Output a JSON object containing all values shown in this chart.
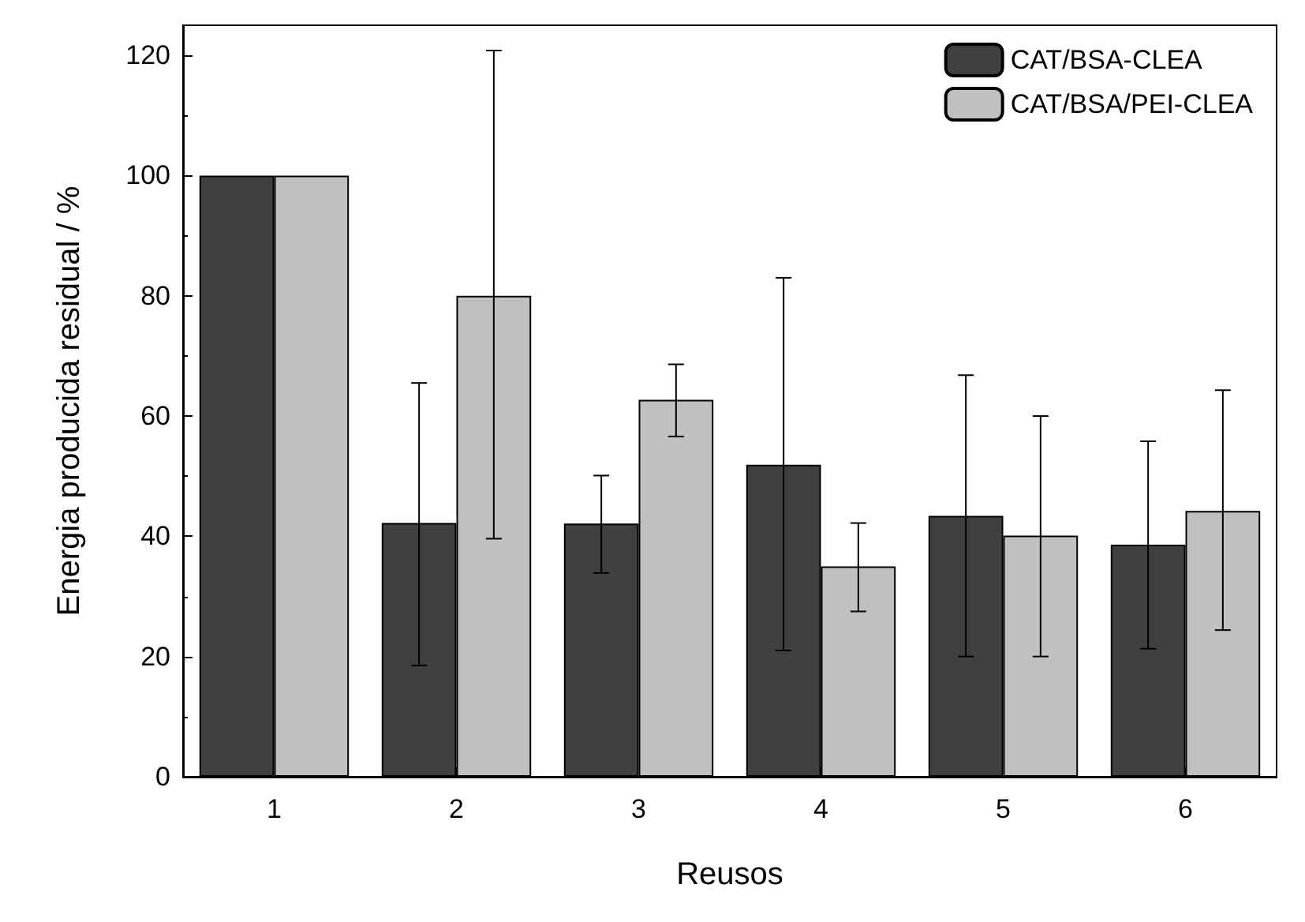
{
  "chart_data": {
    "type": "bar",
    "xlabel": "Reusos",
    "ylabel": "Energia producida residual / %",
    "categories": [
      "1",
      "2",
      "3",
      "4",
      "5",
      "6"
    ],
    "series": [
      {
        "name": "CAT/BSA-CLEA",
        "color": "#404040",
        "values": [
          100,
          42.2,
          42.1,
          51.9,
          43.4,
          38.6
        ],
        "errors": [
          null,
          [
            18.5,
            65.5
          ],
          [
            33.9,
            50.1
          ],
          [
            21,
            83
          ],
          [
            20,
            66.8
          ],
          [
            21.3,
            55.8
          ]
        ]
      },
      {
        "name": "CAT/BSA/PEI-CLEA",
        "color": "#c0c0c0",
        "values": [
          100,
          80,
          62.7,
          35,
          40.1,
          44.2
        ],
        "errors": [
          null,
          [
            39.6,
            120.8
          ],
          [
            56.6,
            68.6
          ],
          [
            27.5,
            42.2
          ],
          [
            20,
            60
          ],
          [
            24.4,
            64.3
          ]
        ]
      }
    ],
    "ylim": [
      0,
      125
    ],
    "yticks": [
      0,
      20,
      40,
      60,
      80,
      100,
      120
    ],
    "grid": false,
    "legend": "top right"
  }
}
